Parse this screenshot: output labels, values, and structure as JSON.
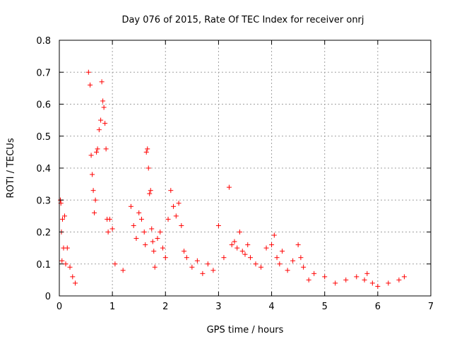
{
  "chart_data": {
    "type": "scatter",
    "title": "Day 076 of 2015, Rate Of TEC Index for receiver onrj",
    "xlabel": "GPS time / hours",
    "ylabel": "ROTI / TECUs",
    "xlim": [
      0,
      7
    ],
    "ylim": [
      0,
      0.8
    ],
    "xticks": [
      0,
      1,
      2,
      3,
      4,
      5,
      6,
      7
    ],
    "yticks": [
      0,
      0.1,
      0.2,
      0.3,
      0.4,
      0.5,
      0.6,
      0.7,
      0.8
    ],
    "grid": true,
    "marker": "+",
    "color": "#ff0000",
    "series": [
      {
        "name": "ROTI",
        "x": [
          0.02,
          0.03,
          0.04,
          0.05,
          0.06,
          0.08,
          0.1,
          0.12,
          0.15,
          0.2,
          0.25,
          0.3,
          0.55,
          0.58,
          0.6,
          0.62,
          0.64,
          0.66,
          0.68,
          0.7,
          0.72,
          0.75,
          0.78,
          0.8,
          0.82,
          0.84,
          0.86,
          0.88,
          0.9,
          0.92,
          0.95,
          1.0,
          1.05,
          1.2,
          1.35,
          1.4,
          1.45,
          1.5,
          1.55,
          1.6,
          1.62,
          1.64,
          1.66,
          1.68,
          1.7,
          1.72,
          1.74,
          1.76,
          1.78,
          1.8,
          1.85,
          1.9,
          1.95,
          2.0,
          2.05,
          2.1,
          2.15,
          2.2,
          2.25,
          2.3,
          2.35,
          2.4,
          2.5,
          2.6,
          2.7,
          2.8,
          2.9,
          3.0,
          3.1,
          3.2,
          3.25,
          3.3,
          3.35,
          3.4,
          3.45,
          3.5,
          3.55,
          3.6,
          3.7,
          3.8,
          3.9,
          4.0,
          4.05,
          4.1,
          4.15,
          4.2,
          4.3,
          4.4,
          4.5,
          4.55,
          4.6,
          4.7,
          4.8,
          5.0,
          5.2,
          5.4,
          5.6,
          5.75,
          5.8,
          5.9,
          6.0,
          6.2,
          6.4,
          6.5
        ],
        "y": [
          0.3,
          0.29,
          0.2,
          0.11,
          0.24,
          0.15,
          0.25,
          0.1,
          0.15,
          0.09,
          0.06,
          0.04,
          0.7,
          0.66,
          0.44,
          0.38,
          0.33,
          0.26,
          0.3,
          0.45,
          0.46,
          0.52,
          0.55,
          0.67,
          0.61,
          0.59,
          0.54,
          0.46,
          0.24,
          0.2,
          0.24,
          0.21,
          0.1,
          0.08,
          0.28,
          0.22,
          0.18,
          0.26,
          0.24,
          0.2,
          0.16,
          0.45,
          0.46,
          0.4,
          0.32,
          0.33,
          0.21,
          0.17,
          0.14,
          0.09,
          0.18,
          0.2,
          0.15,
          0.12,
          0.24,
          0.33,
          0.28,
          0.25,
          0.29,
          0.22,
          0.14,
          0.12,
          0.09,
          0.11,
          0.07,
          0.1,
          0.08,
          0.22,
          0.12,
          0.34,
          0.16,
          0.17,
          0.15,
          0.2,
          0.14,
          0.13,
          0.16,
          0.12,
          0.1,
          0.09,
          0.15,
          0.16,
          0.19,
          0.12,
          0.1,
          0.14,
          0.08,
          0.11,
          0.16,
          0.12,
          0.09,
          0.05,
          0.07,
          0.06,
          0.04,
          0.05,
          0.06,
          0.05,
          0.07,
          0.04,
          0.03,
          0.04,
          0.05,
          0.06
        ]
      }
    ]
  }
}
